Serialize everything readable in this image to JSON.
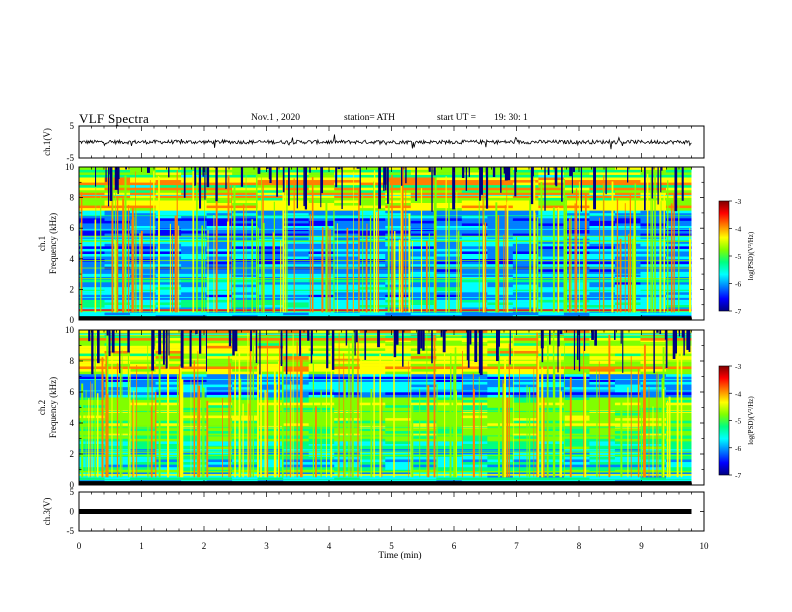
{
  "header": {
    "title": "VLF Spectra",
    "date": "Nov.1  , 2020",
    "station": "station= ATH",
    "start_label": "start  UT  =",
    "start_time": "19: 30: 1"
  },
  "colorbar": {
    "label": "log(PSD)(V²/Hz)",
    "min": -7,
    "max": -3,
    "ticks": [
      "-3",
      "-4",
      "-5",
      "-6",
      "-7"
    ],
    "colors": [
      "#000080",
      "#0000ff",
      "#0080ff",
      "#00ffff",
      "#00ff80",
      "#80ff00",
      "#ffff00",
      "#ff8000",
      "#ff0000",
      "#800000"
    ]
  },
  "chart_data": [
    {
      "type": "line",
      "panel": "ch1-waveform",
      "ylabel": "ch.1(V)",
      "ylim": [
        -5,
        5
      ],
      "yticks": [
        "5",
        "-5"
      ],
      "xlim": [
        0,
        10
      ],
      "series": [
        {
          "values_note_free": true,
          "x_start": 0,
          "x_end": 9.8,
          "baseline": 0,
          "amplitude": 1
        }
      ]
    },
    {
      "type": "heatmap",
      "panel": "ch1-spectrogram",
      "ylabel": "ch.1\nFrequency  (kHz)",
      "ylim": [
        0,
        10
      ],
      "yticks": [
        "0",
        "2",
        "4",
        "6",
        "8",
        "10"
      ],
      "xlim": [
        0,
        10
      ],
      "x_end": 9.8,
      "zlim": [
        -7,
        -3
      ]
    },
    {
      "type": "heatmap",
      "panel": "ch2-spectrogram",
      "ylabel": "ch.2\nFrequency  (kHz)",
      "ylim": [
        0,
        10
      ],
      "yticks": [
        "0",
        "2",
        "4",
        "6",
        "8",
        "10"
      ],
      "xlim": [
        0,
        10
      ],
      "x_end": 9.8,
      "zlim": [
        -7,
        -3
      ]
    },
    {
      "type": "line",
      "panel": "ch3-waveform",
      "ylabel": "ch.3(V)",
      "ylim": [
        -5,
        5
      ],
      "yticks": [
        "5",
        "0",
        "-5"
      ],
      "xlim": [
        0,
        10
      ],
      "series": [
        {
          "x_start": 0,
          "x_end": 9.8,
          "value": 0
        }
      ]
    }
  ],
  "x_axis": {
    "label": "Time  (min)",
    "ticks": [
      "0",
      "1",
      "2",
      "3",
      "4",
      "5",
      "6",
      "7",
      "8",
      "9",
      "10"
    ]
  }
}
